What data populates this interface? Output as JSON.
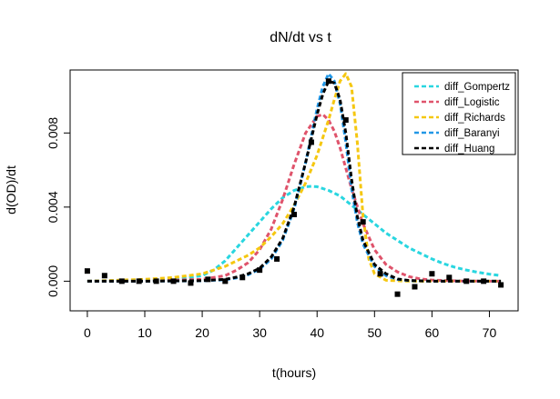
{
  "chart_data": {
    "type": "line",
    "title": "dN/dt vs t",
    "xlabel": "t(hours)",
    "ylabel": "d(OD)/dt",
    "xlim": [
      -3,
      75
    ],
    "ylim": [
      -0.0016,
      0.0114
    ],
    "x_ticks": [
      0,
      10,
      20,
      30,
      40,
      50,
      60,
      70
    ],
    "y_ticks": [
      0.0,
      0.004,
      0.008
    ],
    "y_tick_labels": [
      "0.000",
      "0.004",
      "0.008"
    ],
    "legend_position": "top-right",
    "grid": false,
    "series": [
      {
        "name": "diff_Gompertz",
        "color": "#29D6E0",
        "style": "dashed",
        "x": [
          0,
          5,
          10,
          15,
          20,
          22,
          24,
          26,
          28,
          30,
          32,
          34,
          36,
          38,
          39,
          40,
          42,
          44,
          46,
          48,
          50,
          52,
          54,
          56,
          58,
          60,
          62,
          64,
          66,
          68,
          70,
          72
        ],
        "y": [
          0.0,
          0.0,
          2e-05,
          8e-05,
          0.0003,
          0.0006,
          0.0011,
          0.0018,
          0.0025,
          0.0032,
          0.0039,
          0.0045,
          0.0049,
          0.0051,
          0.00512,
          0.0051,
          0.0049,
          0.0046,
          0.0041,
          0.0036,
          0.0031,
          0.0026,
          0.0022,
          0.0018,
          0.0015,
          0.0012,
          0.00095,
          0.00075,
          0.0006,
          0.00048,
          0.00038,
          0.0003
        ]
      },
      {
        "name": "diff_Logistic",
        "color": "#DF536B",
        "style": "dashed",
        "x": [
          0,
          10,
          20,
          24,
          26,
          28,
          30,
          32,
          34,
          36,
          38,
          40,
          41,
          42,
          43,
          44,
          46,
          48,
          50,
          52,
          54,
          56,
          58,
          60,
          65,
          72
        ],
        "y": [
          0.0,
          1e-05,
          0.0001,
          0.0003,
          0.0006,
          0.001,
          0.0017,
          0.0028,
          0.0044,
          0.0063,
          0.008,
          0.0089,
          0.009,
          0.0087,
          0.0081,
          0.0072,
          0.005,
          0.0031,
          0.0017,
          0.0009,
          0.0005,
          0.00025,
          0.00012,
          6e-05,
          1e-05,
          0.0
        ]
      },
      {
        "name": "diff_Richards",
        "color": "#F5C710",
        "style": "dashed",
        "x": [
          0,
          5,
          10,
          15,
          20,
          24,
          28,
          30,
          32,
          34,
          36,
          38,
          40,
          42,
          43,
          44,
          45,
          46,
          47,
          48,
          49,
          50,
          52,
          56,
          60,
          72
        ],
        "y": [
          0.0,
          5e-05,
          0.0001,
          0.0002,
          0.0004,
          0.0008,
          0.0014,
          0.0018,
          0.0024,
          0.0031,
          0.0041,
          0.0053,
          0.0068,
          0.0087,
          0.0098,
          0.0108,
          0.0112,
          0.0105,
          0.0075,
          0.0035,
          0.0012,
          0.0004,
          5e-05,
          0.0,
          0.0,
          0.0
        ]
      },
      {
        "name": "diff_Baranyi",
        "color": "#2297E6",
        "style": "dashed",
        "x": [
          0,
          10,
          20,
          24,
          26,
          28,
          30,
          32,
          34,
          36,
          38,
          40,
          41,
          42,
          43,
          44,
          45,
          46,
          47,
          48,
          50,
          52,
          54,
          56,
          60,
          72
        ],
        "y": [
          0.0,
          0.0,
          2e-05,
          8e-05,
          0.00018,
          0.00035,
          0.00065,
          0.0012,
          0.0022,
          0.0039,
          0.0064,
          0.0093,
          0.0105,
          0.0112,
          0.0108,
          0.0096,
          0.0075,
          0.005,
          0.0032,
          0.002,
          0.0008,
          0.0003,
          0.0001,
          3e-05,
          0.0,
          0.0
        ]
      },
      {
        "name": "diff_Huang",
        "color": "#000000",
        "style": "dashed",
        "x": [
          0,
          10,
          20,
          24,
          26,
          28,
          30,
          32,
          34,
          36,
          38,
          40,
          41,
          42,
          43,
          44,
          45,
          46,
          47,
          48,
          50,
          52,
          54,
          56,
          60,
          72
        ],
        "y": [
          0.0,
          0.0,
          3e-05,
          0.0001,
          0.00022,
          0.0004,
          0.0007,
          0.0013,
          0.0023,
          0.004,
          0.0064,
          0.009,
          0.0101,
          0.0108,
          0.0107,
          0.0098,
          0.008,
          0.0055,
          0.0035,
          0.0022,
          0.0009,
          0.0004,
          0.00012,
          4e-05,
          0.0,
          0.0
        ]
      }
    ],
    "observed_points": {
      "marker": "filled-square",
      "color": "#000000",
      "x": [
        0,
        3,
        6,
        9,
        12,
        15,
        18,
        21,
        24,
        27,
        30,
        33,
        36,
        39,
        42,
        45,
        48,
        51,
        54,
        57,
        60,
        63,
        66,
        69,
        72
      ],
      "y": [
        0.00055,
        0.0003,
        0.0,
        0.0,
        0.0,
        0.0,
        -0.0001,
        0.0001,
        0.0,
        0.0002,
        0.0006,
        0.0012,
        0.0036,
        0.0075,
        0.0108,
        0.0087,
        0.0032,
        0.0004,
        -0.0007,
        -0.0003,
        0.0004,
        0.0002,
        0.0,
        0.0,
        -0.0002
      ]
    }
  }
}
